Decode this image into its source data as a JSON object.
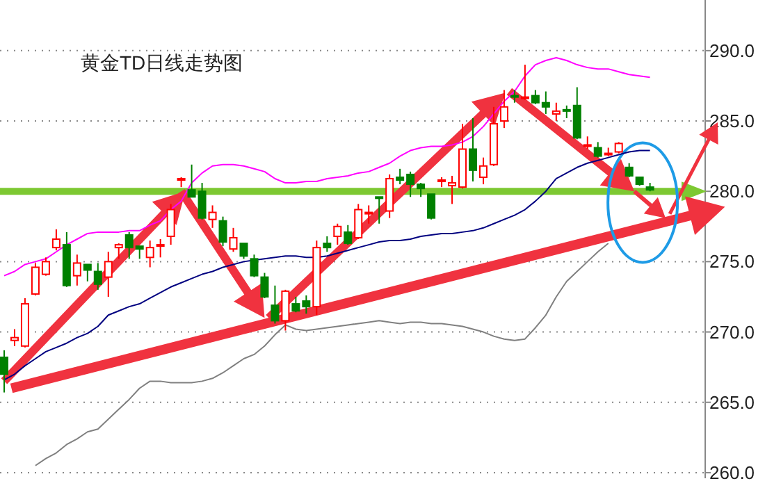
{
  "chart_data": {
    "type": "candlestick",
    "title": "黄金TD日线走势图",
    "categories": [
      null,
      null,
      null,
      null,
      null,
      null,
      null,
      null,
      null,
      null,
      null,
      null,
      null,
      null,
      null,
      null,
      null,
      null,
      null,
      null,
      null,
      null,
      null,
      null,
      null,
      null,
      null,
      null,
      null,
      null,
      null,
      null,
      null,
      null,
      null,
      null,
      null,
      null,
      null,
      null,
      null,
      null,
      null,
      null,
      null,
      null,
      null,
      null,
      null,
      null,
      null,
      null,
      null,
      null,
      null,
      null,
      null,
      null,
      null,
      null,
      null,
      null,
      null
    ],
    "ohlc": [
      [
        268.2,
        268.7,
        265.7,
        267.0
      ],
      [
        269.4,
        270.2,
        269.0,
        269.6
      ],
      [
        269.0,
        272.4,
        268.9,
        272.0
      ],
      [
        272.7,
        274.9,
        272.6,
        274.6
      ],
      [
        274.1,
        275.3,
        274.0,
        275.0
      ],
      [
        276.0,
        277.3,
        275.8,
        276.6
      ],
      [
        276.2,
        277.1,
        273.2,
        273.3
      ],
      [
        274.0,
        275.5,
        273.3,
        274.9
      ],
      [
        274.8,
        274.8,
        273.6,
        274.4
      ],
      [
        274.3,
        274.9,
        273.0,
        273.4
      ],
      [
        273.9,
        275.7,
        272.5,
        275.0
      ],
      [
        276.0,
        276.3,
        275.2,
        276.2
      ],
      [
        276.9,
        277.1,
        275.2,
        276.0
      ],
      [
        276.1,
        276.1,
        275.2,
        275.9
      ],
      [
        275.3,
        276.5,
        274.6,
        276.0
      ],
      [
        276.1,
        276.6,
        275.3,
        276.2
      ],
      [
        276.8,
        279.1,
        276.2,
        278.7
      ],
      [
        280.8,
        281.0,
        280.3,
        280.9
      ],
      [
        280.1,
        281.9,
        279.6,
        279.6
      ],
      [
        280.0,
        280.6,
        278.0,
        278.1
      ],
      [
        278.0,
        279.0,
        277.4,
        278.5
      ],
      [
        277.9,
        278.2,
        276.1,
        276.4
      ],
      [
        275.9,
        277.4,
        275.7,
        276.7
      ],
      [
        276.3,
        276.3,
        275.2,
        275.4
      ],
      [
        275.2,
        275.5,
        273.9,
        274.0
      ],
      [
        273.9,
        274.2,
        272.4,
        272.5
      ],
      [
        271.9,
        273.3,
        270.6,
        270.8
      ],
      [
        270.8,
        273.0,
        270.1,
        272.9
      ],
      [
        272.0,
        272.5,
        271.4,
        271.5
      ],
      [
        272.2,
        272.6,
        271.3,
        271.8
      ],
      [
        271.8,
        276.5,
        271.2,
        276.0
      ],
      [
        276.3,
        276.8,
        275.7,
        276.0
      ],
      [
        276.8,
        277.7,
        276.2,
        277.5
      ],
      [
        277.1,
        277.6,
        276.2,
        276.3
      ],
      [
        276.7,
        279.1,
        276.6,
        278.7
      ],
      [
        278.4,
        279.0,
        277.7,
        278.5
      ],
      [
        279.6,
        279.6,
        277.7,
        279.5
      ],
      [
        278.6,
        281.2,
        278.1,
        280.9
      ],
      [
        281.0,
        281.6,
        280.5,
        280.8
      ],
      [
        281.2,
        281.4,
        279.6,
        280.5
      ],
      [
        280.5,
        280.6,
        279.6,
        280.2
      ],
      [
        279.8,
        279.8,
        278.0,
        278.1
      ],
      [
        280.7,
        281.0,
        280.3,
        280.8
      ],
      [
        280.4,
        281.1,
        279.1,
        280.6
      ],
      [
        280.3,
        284.8,
        280.2,
        283.0
      ],
      [
        283.0,
        285.2,
        280.7,
        281.5
      ],
      [
        281.0,
        282.4,
        280.5,
        281.8
      ],
      [
        281.9,
        286.0,
        281.8,
        284.8
      ],
      [
        285.0,
        287.2,
        284.5,
        286.0
      ],
      [
        286.8,
        287.2,
        286.3,
        286.7
      ],
      [
        286.6,
        289.0,
        286.5,
        286.7
      ],
      [
        286.8,
        287.2,
        286.2,
        286.3
      ],
      [
        286.3,
        287.1,
        285.5,
        286.0
      ],
      [
        285.5,
        286.3,
        285.0,
        285.7
      ],
      [
        285.8,
        286.1,
        285.2,
        285.7
      ],
      [
        286.1,
        287.4,
        283.7,
        283.8
      ],
      [
        283.2,
        283.9,
        283.0,
        283.3
      ],
      [
        283.1,
        283.5,
        282.4,
        282.5
      ],
      [
        282.6,
        283.1,
        282.5,
        282.7
      ],
      [
        282.8,
        283.5,
        282.7,
        283.4
      ],
      [
        281.7,
        282.0,
        281.0,
        281.1
      ],
      [
        281.0,
        281.0,
        280.4,
        280.5
      ],
      [
        280.3,
        280.6,
        280.0,
        280.1
      ]
    ],
    "colors": [
      "#008000",
      "#ff0000",
      "#ff0000",
      "#ff0000",
      "#ff0000",
      "#ff0000",
      "#008000",
      "#ff0000",
      "#008000",
      "#008000",
      "#ff0000",
      "#ff0000",
      "#008000",
      "#008000",
      "#ff0000",
      "#ff0000",
      "#ff0000",
      "#ff0000",
      "#008000",
      "#008000",
      "#ff0000",
      "#008000",
      "#ff0000",
      "#008000",
      "#008000",
      "#008000",
      "#008000",
      "#ff0000",
      "#008000",
      "#008000",
      "#ff0000",
      "#008000",
      "#ff0000",
      "#008000",
      "#ff0000",
      "#ff0000",
      "#008000",
      "#ff0000",
      "#008000",
      "#008000",
      "#008000",
      "#008000",
      "#ff0000",
      "#ff0000",
      "#ff0000",
      "#008000",
      "#ff0000",
      "#ff0000",
      "#ff0000",
      "#008000",
      "#ff0000",
      "#008000",
      "#008000",
      "#ff0000",
      "#008000",
      "#008000",
      "#ff0000",
      "#008000",
      "#ff0000",
      "#ff0000",
      "#008000",
      "#008000",
      "#008000"
    ],
    "series": [
      {
        "type": "line",
        "color": "#ff00ff",
        "values": [
          274.0,
          274.3,
          274.8,
          275.0,
          275.2,
          275.7,
          276.2,
          276.6,
          277.0,
          277.1,
          277.1,
          277.1,
          277.2,
          277.2,
          277.6,
          277.9,
          278.7,
          279.3,
          280.6,
          281.3,
          281.8,
          281.9,
          281.9,
          281.8,
          281.6,
          281.4,
          280.9,
          280.6,
          280.6,
          280.7,
          280.7,
          280.9,
          281.0,
          281.1,
          281.3,
          281.4,
          281.7,
          282.0,
          282.5,
          282.9,
          283.1,
          283.2,
          283.2,
          283.3,
          283.5,
          283.9,
          284.6,
          285.5,
          286.4,
          287.1,
          288.2,
          289.0,
          289.3,
          289.5,
          289.3,
          289.0,
          288.8,
          288.7,
          288.7,
          288.5,
          288.3,
          288.2,
          288.1
        ]
      },
      {
        "type": "line",
        "color": "#000080",
        "values": [
          266.6,
          267.0,
          267.6,
          268.1,
          268.6,
          268.9,
          269.2,
          269.6,
          269.9,
          270.4,
          271.2,
          271.5,
          271.8,
          272.0,
          272.4,
          272.8,
          273.2,
          273.5,
          273.8,
          274.1,
          274.3,
          274.6,
          274.8,
          275.0,
          275.1,
          275.2,
          275.3,
          275.4,
          275.4,
          275.3,
          275.3,
          275.4,
          275.6,
          275.8,
          276.0,
          276.2,
          276.4,
          276.5,
          276.5,
          276.6,
          276.8,
          276.9,
          277.0,
          277.0,
          277.1,
          277.2,
          277.4,
          277.7,
          278.0,
          278.3,
          278.7,
          279.3,
          280.0,
          280.9,
          281.3,
          281.7,
          282.0,
          282.2,
          282.4,
          282.6,
          282.8,
          282.9,
          282.9
        ]
      },
      {
        "type": "line",
        "color": "#808080",
        "values": [
          null,
          null,
          null,
          260.5,
          261.0,
          261.4,
          262.0,
          262.4,
          262.9,
          263.1,
          263.8,
          264.5,
          265.2,
          266.0,
          266.5,
          266.5,
          266.4,
          266.4,
          266.4,
          266.5,
          266.7,
          267.1,
          267.6,
          268.1,
          268.4,
          269.0,
          269.8,
          270.5,
          270.2,
          270.1,
          270.2,
          270.3,
          270.4,
          270.5,
          270.6,
          270.7,
          270.8,
          270.7,
          270.6,
          270.7,
          270.7,
          270.6,
          270.6,
          270.5,
          270.4,
          270.2,
          270.0,
          269.7,
          269.5,
          269.4,
          269.5,
          270.3,
          271.2,
          272.5,
          273.6,
          274.3,
          275.0,
          275.7,
          276.3,
          null,
          null,
          null,
          null
        ]
      }
    ],
    "ylim": [
      259.6,
      293.6
    ],
    "yticks": [
      {
        "value": 260,
        "label": "260.0"
      },
      {
        "value": 265,
        "label": "265.0"
      },
      {
        "value": 270,
        "label": "270.0"
      },
      {
        "value": 275,
        "label": "275.0"
      },
      {
        "value": 280,
        "label": "280.0"
      },
      {
        "value": 285,
        "label": "285.0"
      },
      {
        "value": 290,
        "label": "290.0"
      }
    ],
    "grid": "y",
    "tick_labels": "y",
    "ref_lines": [
      {
        "axis": "y",
        "value": 280,
        "color": "#7dc832"
      }
    ]
  }
}
